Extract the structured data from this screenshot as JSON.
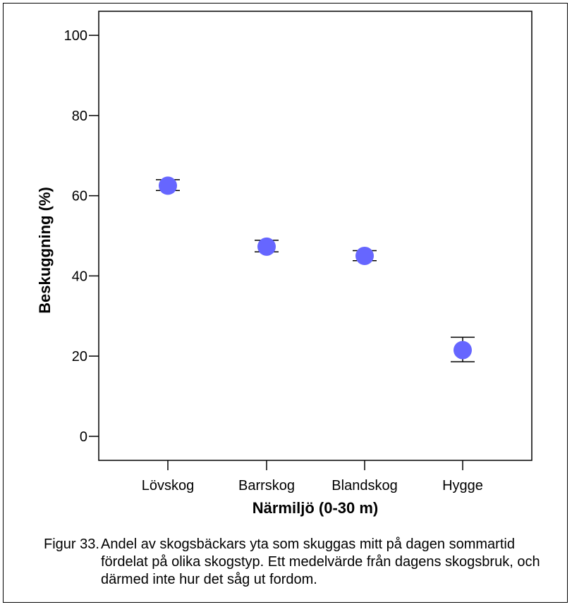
{
  "chart_data": {
    "type": "scatter",
    "title": "",
    "xlabel": "Närmiljö (0-30 m)",
    "ylabel": "Beskuggning (%)",
    "categories": [
      "Lövskog",
      "Barrskog",
      "Blandskog",
      "Hygge"
    ],
    "ylim": [
      -6,
      106
    ],
    "yticks": [
      "0",
      "20",
      "40",
      "60",
      "80",
      "100"
    ],
    "ytick_values": [
      0,
      20,
      40,
      60,
      80,
      100
    ],
    "values": [
      62.5,
      47.3,
      45.0,
      21.5
    ],
    "error_low": [
      61.3,
      46.0,
      43.8,
      18.6
    ],
    "error_high": [
      64.0,
      48.9,
      46.3,
      24.7
    ],
    "grid": false,
    "marker_color": "#6666ff"
  },
  "caption": {
    "number": "Figur 33.",
    "text": "Andel av skogsbäckars yta som skuggas mitt på dagen sommartid fördelat på olika skogstyp. Ett medelvärde från dagens skogsbruk, och därmed inte hur det såg ut fordom."
  }
}
